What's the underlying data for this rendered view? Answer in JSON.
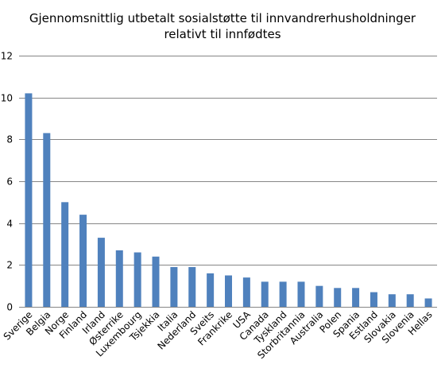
{
  "chart_data": {
    "type": "bar",
    "title_lines": [
      "Gjennomsnittlig utbetalt sosialstøtte til innvandrerhusholdninger",
      "relativt til innfødtes"
    ],
    "categories": [
      "Sverige",
      "Belgia",
      "Norge",
      "Finland",
      "Irland",
      "Østerrike",
      "Luxembourg",
      "Tsjekkia",
      "Italia",
      "Nederland",
      "Sveits",
      "Frankrike",
      "USA",
      "Canada",
      "Tyskland",
      "Storbritannia",
      "Australia",
      "Polen",
      "Spania",
      "Estland",
      "Slovakia",
      "Slovenia",
      "Hellas"
    ],
    "values": [
      10.2,
      8.3,
      5.0,
      4.4,
      3.3,
      2.7,
      2.6,
      2.4,
      1.9,
      1.9,
      1.6,
      1.5,
      1.4,
      1.2,
      1.2,
      1.2,
      1.0,
      0.9,
      0.9,
      0.7,
      0.6,
      0.6,
      0.4
    ],
    "ylim": [
      0,
      12
    ],
    "yticks": [
      0,
      2,
      4,
      6,
      8,
      10,
      12
    ],
    "grid": true,
    "legend": "none",
    "bar_color": "#4f81bd",
    "grid_color": "#868686"
  }
}
